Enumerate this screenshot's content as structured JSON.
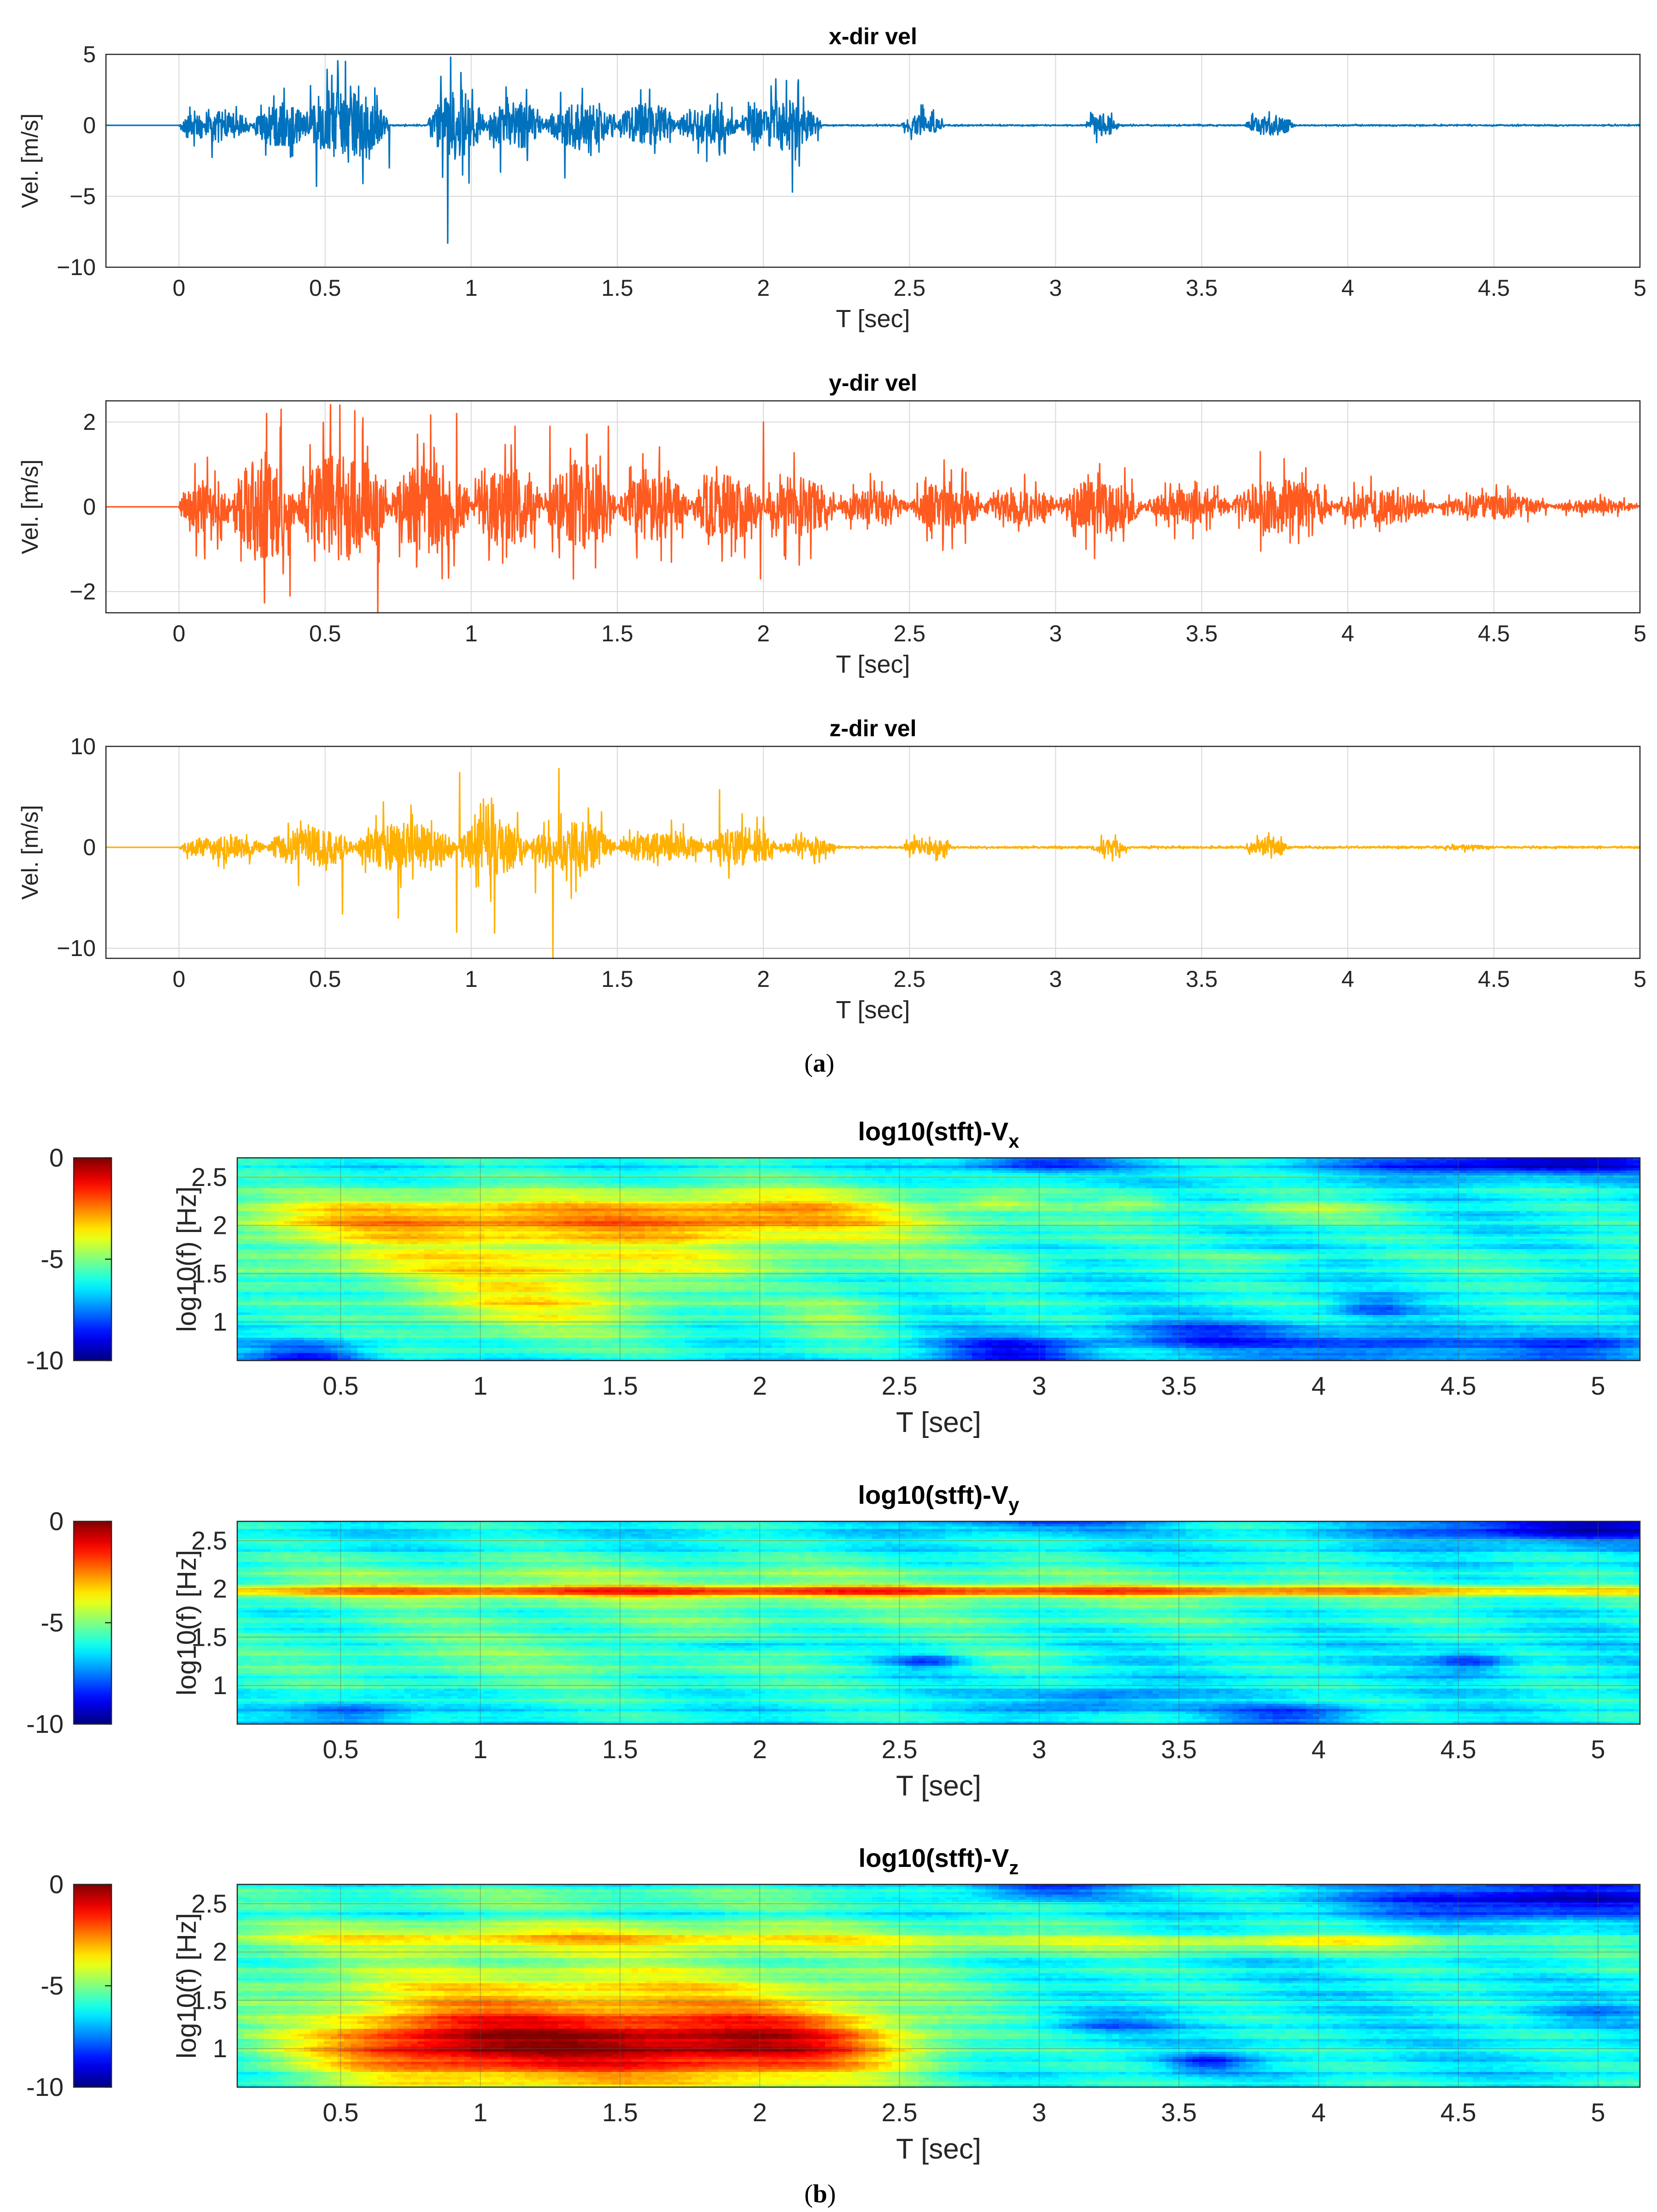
{
  "figure": {
    "label_a": "a",
    "label_b": "b"
  },
  "colors": {
    "x_vel": "#0072BD",
    "y_vel": "#FF5A1F",
    "z_vel": "#FFB000",
    "grid": "#D9D9D9",
    "axis": "#262626"
  },
  "chart_data": [
    {
      "type": "line",
      "id": "x-vel",
      "title": "x-dir vel",
      "xlabel": "T [sec]",
      "ylabel": "Vel. [m/s]",
      "xlim": [
        -0.25,
        5
      ],
      "ylim": [
        -10,
        5
      ],
      "xticks": [
        0,
        0.5,
        1,
        1.5,
        2,
        2.5,
        3,
        3.5,
        4,
        4.5,
        5
      ],
      "xtick_labels": [
        "0",
        "0.5",
        "1",
        "1.5",
        "2",
        "2.5",
        "3",
        "3.5",
        "4",
        "4.5",
        "5"
      ],
      "yticks": [
        -10,
        -5,
        0,
        5
      ],
      "ytick_labels": [
        "−10",
        "−5",
        "0",
        "5"
      ],
      "grid": true,
      "color": "#0072BD",
      "bursts": [
        {
          "t0": 0.0,
          "t1": 0.25,
          "amp": 1.5
        },
        {
          "t0": 0.25,
          "t1": 0.45,
          "amp": 2.0
        },
        {
          "t0": 0.42,
          "t1": 0.72,
          "amp": 3.0
        },
        {
          "t0": 0.85,
          "t1": 1.05,
          "amp": 3.0
        },
        {
          "t0": 1.05,
          "t1": 1.25,
          "amp": 2.2
        },
        {
          "t0": 1.25,
          "t1": 1.5,
          "amp": 2.0
        },
        {
          "t0": 1.5,
          "t1": 1.7,
          "amp": 2.0
        },
        {
          "t0": 1.7,
          "t1": 1.92,
          "amp": 1.6
        },
        {
          "t0": 1.92,
          "t1": 2.2,
          "amp": 2.2
        },
        {
          "t0": 2.47,
          "t1": 2.62,
          "amp": 0.9
        },
        {
          "t0": 3.1,
          "t1": 3.22,
          "amp": 0.9
        },
        {
          "t0": 3.65,
          "t1": 3.82,
          "amp": 0.9
        }
      ],
      "peaks": [
        [
          0.45,
          2.8
        ],
        [
          0.57,
          4.5
        ],
        [
          0.47,
          -4.3
        ],
        [
          0.63,
          -4.1
        ],
        [
          0.72,
          -3.0
        ],
        [
          0.93,
          4.8
        ],
        [
          0.92,
          -8.3
        ],
        [
          0.97,
          -3.5
        ],
        [
          1.1,
          -3.3
        ],
        [
          1.12,
          2.7
        ],
        [
          1.32,
          -3.7
        ],
        [
          1.38,
          2.6
        ],
        [
          1.58,
          2.5
        ],
        [
          1.85,
          -2.1
        ],
        [
          2.1,
          -4.7
        ],
        [
          2.12,
          3.2
        ]
      ],
      "baseline_noise": 0.05
    },
    {
      "type": "line",
      "id": "y-vel",
      "title": "y-dir vel",
      "xlabel": "T [sec]",
      "ylabel": "Vel. [m/s]",
      "xlim": [
        -0.25,
        5
      ],
      "ylim": [
        -2.5,
        2.5
      ],
      "xticks": [
        0,
        0.5,
        1,
        1.5,
        2,
        2.5,
        3,
        3.5,
        4,
        4.5,
        5
      ],
      "xtick_labels": [
        "0",
        "0.5",
        "1",
        "1.5",
        "2",
        "2.5",
        "3",
        "3.5",
        "4",
        "4.5",
        "5"
      ],
      "yticks": [
        -2,
        0,
        2
      ],
      "ytick_labels": [
        "−2",
        "0",
        "2"
      ],
      "grid": true,
      "color": "#FF5A1F",
      "bursts": [
        {
          "t0": 0.0,
          "t1": 0.18,
          "amp": 0.8
        },
        {
          "t0": 0.18,
          "t1": 0.4,
          "amp": 1.6
        },
        {
          "t0": 0.4,
          "t1": 0.72,
          "amp": 1.6
        },
        {
          "t0": 0.72,
          "t1": 1.0,
          "amp": 1.4
        },
        {
          "t0": 1.0,
          "t1": 1.25,
          "amp": 1.2
        },
        {
          "t0": 1.25,
          "t1": 1.5,
          "amp": 1.3
        },
        {
          "t0": 1.5,
          "t1": 1.75,
          "amp": 1.0
        },
        {
          "t0": 1.75,
          "t1": 2.0,
          "amp": 1.0
        },
        {
          "t0": 2.0,
          "t1": 2.25,
          "amp": 0.9
        },
        {
          "t0": 2.25,
          "t1": 2.5,
          "amp": 0.5
        },
        {
          "t0": 2.5,
          "t1": 2.75,
          "amp": 0.7
        },
        {
          "t0": 2.75,
          "t1": 3.0,
          "amp": 0.5
        },
        {
          "t0": 3.0,
          "t1": 3.3,
          "amp": 0.8
        },
        {
          "t0": 3.3,
          "t1": 3.6,
          "amp": 0.5
        },
        {
          "t0": 3.6,
          "t1": 3.95,
          "amp": 0.8
        },
        {
          "t0": 3.95,
          "t1": 4.3,
          "amp": 0.5
        },
        {
          "t0": 4.3,
          "t1": 4.7,
          "amp": 0.35
        },
        {
          "t0": 4.7,
          "t1": 5.0,
          "amp": 0.2
        }
      ],
      "peaks": [
        [
          0.3,
          2.2
        ],
        [
          0.35,
          2.3
        ],
        [
          0.38,
          -2.1
        ],
        [
          0.55,
          2.4
        ],
        [
          0.68,
          -2.5
        ],
        [
          0.63,
          2.1
        ],
        [
          0.95,
          -2.2
        ],
        [
          0.95,
          2.2
        ],
        [
          1.15,
          1.9
        ],
        [
          1.27,
          1.9
        ],
        [
          1.47,
          1.9
        ],
        [
          1.35,
          -1.7
        ],
        [
          2.0,
          2.0
        ],
        [
          1.99,
          -1.7
        ],
        [
          3.7,
          1.3
        ]
      ],
      "baseline_noise": 0.02
    },
    {
      "type": "line",
      "id": "z-vel",
      "title": "z-dir vel",
      "xlabel": "T [sec]",
      "ylabel": "Vel. [m/s]",
      "xlim": [
        -0.25,
        5
      ],
      "ylim": [
        -11,
        10
      ],
      "xticks": [
        0,
        0.5,
        1,
        1.5,
        2,
        2.5,
        3,
        3.5,
        4,
        4.5,
        5
      ],
      "xtick_labels": [
        "0",
        "0.5",
        "1",
        "1.5",
        "2",
        "2.5",
        "3",
        "3.5",
        "4",
        "4.5",
        "5"
      ],
      "yticks": [
        -10,
        0,
        10
      ],
      "ytick_labels": [
        "−10",
        "0",
        "10"
      ],
      "grid": true,
      "color": "#FFB000",
      "bursts": [
        {
          "t0": 0.0,
          "t1": 0.3,
          "amp": 1.5
        },
        {
          "t0": 0.3,
          "t1": 0.6,
          "amp": 2.5
        },
        {
          "t0": 0.6,
          "t1": 0.95,
          "amp": 3.0
        },
        {
          "t0": 0.95,
          "t1": 1.2,
          "amp": 3.5
        },
        {
          "t0": 1.2,
          "t1": 1.5,
          "amp": 3.2
        },
        {
          "t0": 1.5,
          "t1": 1.8,
          "amp": 1.8
        },
        {
          "t0": 1.8,
          "t1": 2.05,
          "amp": 2.2
        },
        {
          "t0": 2.05,
          "t1": 2.25,
          "amp": 1.2
        },
        {
          "t0": 2.47,
          "t1": 2.65,
          "amp": 1.0
        },
        {
          "t0": 3.12,
          "t1": 3.25,
          "amp": 0.9
        },
        {
          "t0": 3.65,
          "t1": 3.8,
          "amp": 1.0
        },
        {
          "t0": 4.3,
          "t1": 4.5,
          "amp": 0.3
        }
      ],
      "peaks": [
        [
          0.96,
          7.4
        ],
        [
          0.95,
          -8.4
        ],
        [
          1.3,
          7.8
        ],
        [
          1.28,
          -11.0
        ],
        [
          1.08,
          -8.5
        ],
        [
          0.56,
          4.5
        ],
        [
          0.56,
          -6.6
        ],
        [
          0.75,
          -7.0
        ],
        [
          0.7,
          4.5
        ],
        [
          1.22,
          -4.5
        ],
        [
          1.85,
          5.7
        ],
        [
          2.0,
          3.0
        ]
      ],
      "baseline_noise": 0.1
    },
    {
      "type": "heatmap",
      "id": "stft-vx",
      "title_main": "log10(stft)-V",
      "title_sub": "x",
      "xlabel": "T [sec]",
      "ylabel": "log10(f) [Hz]",
      "xlim": [
        0.13,
        5.15
      ],
      "ylim": [
        0.6,
        2.7
      ],
      "xticks": [
        0.5,
        1,
        1.5,
        2,
        2.5,
        3,
        3.5,
        4,
        4.5,
        5
      ],
      "xtick_labels": [
        "0.5",
        "1",
        "1.5",
        "2",
        "2.5",
        "3",
        "3.5",
        "4",
        "4.5",
        "5"
      ],
      "yticks": [
        1,
        1.5,
        2,
        2.5
      ],
      "ytick_labels": [
        "1",
        "1.5",
        "2",
        "2.5"
      ],
      "colorbar": {
        "min": -10,
        "max": 0,
        "ticks": [
          "0",
          "-5",
          "-10"
        ]
      },
      "base": -6.2,
      "blobs": [
        {
          "t": 1.4,
          "f": 2.05,
          "st": 0.9,
          "sf": 0.22,
          "a": 3.3
        },
        {
          "t": 2.1,
          "f": 2.15,
          "st": 0.35,
          "sf": 0.2,
          "a": 1.2
        },
        {
          "t": 0.6,
          "f": 2.05,
          "st": 0.35,
          "sf": 0.18,
          "a": 1.0
        },
        {
          "t": 1.2,
          "f": 1.25,
          "st": 0.4,
          "sf": 0.3,
          "a": 2.4
        },
        {
          "t": 1.6,
          "f": 1.6,
          "st": 0.8,
          "sf": 0.1,
          "a": 1.2
        },
        {
          "t": 2.3,
          "f": 1.1,
          "st": 0.15,
          "sf": 0.2,
          "a": 1.2
        },
        {
          "t": 0.55,
          "f": 1.6,
          "st": 0.3,
          "sf": 0.12,
          "a": 0.8
        },
        {
          "t": 2.85,
          "f": 2.25,
          "st": 0.1,
          "sf": 0.05,
          "a": 1.3
        },
        {
          "t": 3.35,
          "f": 2.25,
          "st": 0.1,
          "sf": 0.05,
          "a": 1.3
        },
        {
          "t": 3.95,
          "f": 2.15,
          "st": 0.25,
          "sf": 0.08,
          "a": 1.3
        },
        {
          "t": 2.9,
          "f": 1.6,
          "st": 0.1,
          "sf": 0.05,
          "a": 1.0
        },
        {
          "t": 3.8,
          "f": 1.65,
          "st": 0.15,
          "sf": 0.05,
          "a": 1.0
        },
        {
          "t": 4.8,
          "f": 1.6,
          "st": 0.3,
          "sf": 0.1,
          "a": 0.5
        }
      ],
      "sinks": [
        {
          "t": 0.4,
          "f": 0.65,
          "st": 0.15,
          "sf": 0.12,
          "a": 2.3
        },
        {
          "t": 2.9,
          "f": 0.7,
          "st": 0.2,
          "sf": 0.12,
          "a": 2.5
        },
        {
          "t": 3.6,
          "f": 0.85,
          "st": 0.25,
          "sf": 0.12,
          "a": 2.0
        },
        {
          "t": 4.2,
          "f": 0.75,
          "st": 0.25,
          "sf": 0.12,
          "a": 2.0
        },
        {
          "t": 4.95,
          "f": 0.75,
          "st": 0.2,
          "sf": 0.12,
          "a": 2.3
        },
        {
          "t": 4.75,
          "f": 2.65,
          "st": 0.45,
          "sf": 0.1,
          "a": 3.2
        },
        {
          "t": 3.0,
          "f": 2.65,
          "st": 0.2,
          "sf": 0.08,
          "a": 2.3
        },
        {
          "t": 4.2,
          "f": 1.15,
          "st": 0.1,
          "sf": 0.08,
          "a": 1.5
        }
      ]
    },
    {
      "type": "heatmap",
      "id": "stft-vy",
      "title_main": "log10(stft)-V",
      "title_sub": "y",
      "xlabel": "T [sec]",
      "ylabel": "log10(f) [Hz]",
      "xlim": [
        0.13,
        5.15
      ],
      "ylim": [
        0.6,
        2.7
      ],
      "xticks": [
        0.5,
        1,
        1.5,
        2,
        2.5,
        3,
        3.5,
        4,
        4.5,
        5
      ],
      "xtick_labels": [
        "0.5",
        "1",
        "1.5",
        "2",
        "2.5",
        "3",
        "3.5",
        "4",
        "4.5",
        "5"
      ],
      "yticks": [
        1,
        1.5,
        2,
        2.5
      ],
      "ytick_labels": [
        "1",
        "1.5",
        "2",
        "2.5"
      ],
      "colorbar": {
        "min": -10,
        "max": 0,
        "ticks": [
          "0",
          "-5",
          "-10"
        ]
      },
      "base": -6.3,
      "blobs": [
        {
          "t": 2.6,
          "f": 1.97,
          "st": 2.6,
          "sf": 0.045,
          "a": 3.8
        },
        {
          "t": 1.2,
          "f": 2.1,
          "st": 1.0,
          "sf": 0.18,
          "a": 1.3
        },
        {
          "t": 1.2,
          "f": 1.3,
          "st": 0.9,
          "sf": 0.3,
          "a": 1.0
        },
        {
          "t": 2.8,
          "f": 1.75,
          "st": 1.2,
          "sf": 0.15,
          "a": 0.7
        },
        {
          "t": 3.0,
          "f": 2.2,
          "st": 0.8,
          "sf": 0.06,
          "a": 0.6
        },
        {
          "t": 2.9,
          "f": 1.3,
          "st": 0.15,
          "sf": 0.1,
          "a": 0.5
        },
        {
          "t": 3.6,
          "f": 2.05,
          "st": 0.9,
          "sf": 0.05,
          "a": 0.8
        }
      ],
      "sinks": [
        {
          "t": 4.9,
          "f": 2.65,
          "st": 0.4,
          "sf": 0.12,
          "a": 3.2
        },
        {
          "t": 3.0,
          "f": 2.7,
          "st": 0.3,
          "sf": 0.06,
          "a": 2.0
        },
        {
          "t": 2.6,
          "f": 1.25,
          "st": 0.1,
          "sf": 0.06,
          "a": 1.8
        },
        {
          "t": 4.55,
          "f": 1.25,
          "st": 0.1,
          "sf": 0.08,
          "a": 1.8
        },
        {
          "t": 0.55,
          "f": 0.72,
          "st": 0.15,
          "sf": 0.1,
          "a": 1.8
        },
        {
          "t": 3.9,
          "f": 0.7,
          "st": 0.2,
          "sf": 0.08,
          "a": 1.8
        },
        {
          "t": 1.9,
          "f": 1.4,
          "st": 0.15,
          "sf": 0.06,
          "a": 1.2
        },
        {
          "t": 3.2,
          "f": 0.85,
          "st": 0.2,
          "sf": 0.1,
          "a": 1.5
        }
      ]
    },
    {
      "type": "heatmap",
      "id": "stft-vz",
      "title_main": "log10(stft)-V",
      "title_sub": "z",
      "xlabel": "T [sec]",
      "ylabel": "log10(f) [Hz]",
      "xlim": [
        0.13,
        5.15
      ],
      "ylim": [
        0.6,
        2.7
      ],
      "xticks": [
        0.5,
        1,
        1.5,
        2,
        2.5,
        3,
        3.5,
        4,
        4.5,
        5
      ],
      "xtick_labels": [
        "0.5",
        "1",
        "1.5",
        "2",
        "2.5",
        "3",
        "3.5",
        "4",
        "4.5",
        "5"
      ],
      "yticks": [
        1,
        1.5,
        2,
        2.5
      ],
      "ytick_labels": [
        "1",
        "1.5",
        "2",
        "2.5"
      ],
      "colorbar": {
        "min": -10,
        "max": 0,
        "ticks": [
          "0",
          "-5",
          "-10"
        ]
      },
      "base": -6.3,
      "blobs": [
        {
          "t": 1.4,
          "f": 1.05,
          "st": 0.55,
          "sf": 0.32,
          "a": 5.2
        },
        {
          "t": 2.15,
          "f": 1.05,
          "st": 0.35,
          "sf": 0.3,
          "a": 3.2
        },
        {
          "t": 0.75,
          "f": 1.05,
          "st": 0.35,
          "sf": 0.3,
          "a": 2.6
        },
        {
          "t": 1.3,
          "f": 2.15,
          "st": 1.1,
          "sf": 0.12,
          "a": 2.8
        },
        {
          "t": 1.3,
          "f": 1.7,
          "st": 1.0,
          "sf": 0.2,
          "a": 1.8
        },
        {
          "t": 1.4,
          "f": 2.55,
          "st": 1.0,
          "sf": 0.08,
          "a": 1.2
        },
        {
          "t": 3.6,
          "f": 2.08,
          "st": 0.9,
          "sf": 0.06,
          "a": 1.6
        },
        {
          "t": 4.1,
          "f": 2.12,
          "st": 0.35,
          "sf": 0.06,
          "a": 1.0
        },
        {
          "t": 4.9,
          "f": 1.9,
          "st": 0.3,
          "sf": 0.1,
          "a": 0.5
        }
      ],
      "sinks": [
        {
          "t": 3.0,
          "f": 2.65,
          "st": 0.2,
          "sf": 0.08,
          "a": 2.2
        },
        {
          "t": 4.8,
          "f": 2.55,
          "st": 0.45,
          "sf": 0.15,
          "a": 3.0
        },
        {
          "t": 3.6,
          "f": 0.85,
          "st": 0.1,
          "sf": 0.06,
          "a": 2.0
        },
        {
          "t": 3.25,
          "f": 1.25,
          "st": 0.15,
          "sf": 0.08,
          "a": 1.2
        },
        {
          "t": 4.95,
          "f": 1.35,
          "st": 0.15,
          "sf": 0.08,
          "a": 1.0
        }
      ]
    }
  ]
}
